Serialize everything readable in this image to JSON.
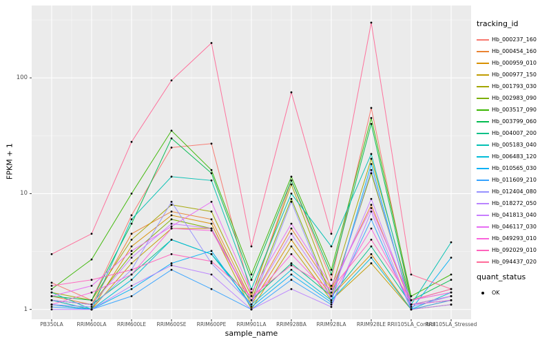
{
  "figure": {
    "background": "#FFFFFF",
    "panel_background": "#EBEBEB",
    "grid_color": "#FFFFFF",
    "tick_color": "#333333",
    "point_color": "#000000"
  },
  "chart_data": {
    "type": "line",
    "title": "",
    "xlabel": "sample_name",
    "ylabel": "FPKM + 1",
    "yscale": "log10",
    "yticks": [
      1,
      10,
      100
    ],
    "ytick_labels": [
      "1",
      "10",
      "100"
    ],
    "ylim": [
      1,
      320
    ],
    "grid": true,
    "categories": [
      "PB350LA",
      "RRIM600LA",
      "RRIM600LE",
      "RRIM600SE",
      "RRIM600PE",
      "RRIM901LA",
      "RRIM928BA",
      "RRIM928LA",
      "RRIM928LE",
      "RRII105LA_Control",
      "RRII105LA_Stressed"
    ],
    "legend": {
      "title": "tracking_id",
      "position": "right"
    },
    "legend2": {
      "title": "quant_status",
      "items": [
        {
          "label": "OK",
          "marker": "point",
          "color": "#000000"
        }
      ]
    },
    "series": [
      {
        "name": "Hb_000237_160",
        "color": "#F8766D",
        "values": [
          1.7,
          1.2,
          6.5,
          25,
          27,
          1.3,
          13,
          1.8,
          55,
          1.2,
          1.4
        ]
      },
      {
        "name": "Hb_000454_160",
        "color": "#EA8331",
        "values": [
          1.3,
          1.1,
          4.5,
          7.0,
          6.0,
          1.2,
          5.0,
          1.5,
          8.0,
          1.1,
          1.3
        ]
      },
      {
        "name": "Hb_000959_010",
        "color": "#D89000",
        "values": [
          1.2,
          1.0,
          3.5,
          6.5,
          5.5,
          1.1,
          4.0,
          1.3,
          3.0,
          1.0,
          1.2
        ]
      },
      {
        "name": "Hb_000977_150",
        "color": "#C09B00",
        "values": [
          1.1,
          1.0,
          2.5,
          5.0,
          5.0,
          1.0,
          3.5,
          1.2,
          2.5,
          1.0,
          1.1
        ]
      },
      {
        "name": "Hb_001793_030",
        "color": "#A3A500",
        "values": [
          1.4,
          1.2,
          4.0,
          8.0,
          7.0,
          1.3,
          12,
          1.5,
          20,
          1.2,
          1.5
        ]
      },
      {
        "name": "Hb_002983_090",
        "color": "#7CAE00",
        "values": [
          1.2,
          1.1,
          3.0,
          6.0,
          5.0,
          1.2,
          9.0,
          1.3,
          15,
          1.1,
          1.3
        ]
      },
      {
        "name": "Hb_003517_090",
        "color": "#39B600",
        "values": [
          1.5,
          2.7,
          10,
          35,
          16,
          2.0,
          14,
          2.2,
          45,
          1.3,
          2.0
        ]
      },
      {
        "name": "Hb_003799_060",
        "color": "#00BB4E",
        "values": [
          1.3,
          1.2,
          5.5,
          30,
          15,
          1.8,
          13,
          2.0,
          40,
          1.2,
          1.8
        ]
      },
      {
        "name": "Hb_004007_200",
        "color": "#00C087",
        "values": [
          1.2,
          1.1,
          2.0,
          4.0,
          3.0,
          1.2,
          2.5,
          1.3,
          3.5,
          1.1,
          1.2
        ]
      },
      {
        "name": "Hb_005183_040",
        "color": "#00C0B2",
        "values": [
          1.4,
          1.0,
          6.0,
          14,
          13,
          1.5,
          10,
          3.5,
          22,
          1.1,
          3.8
        ]
      },
      {
        "name": "Hb_006483_120",
        "color": "#00BCD8",
        "values": [
          1.2,
          1.0,
          1.8,
          4.0,
          3.0,
          1.1,
          2.2,
          1.2,
          2.8,
          1.0,
          1.4
        ]
      },
      {
        "name": "Hb_010565_030",
        "color": "#00B0F6",
        "values": [
          1.1,
          1.0,
          1.5,
          2.5,
          3.2,
          1.05,
          2.0,
          1.15,
          18,
          1.0,
          2.8
        ]
      },
      {
        "name": "Hb_011609_210",
        "color": "#35A2FF",
        "values": [
          1.05,
          1.0,
          1.3,
          2.2,
          1.5,
          1.0,
          1.8,
          1.1,
          6.0,
          1.0,
          1.2
        ]
      },
      {
        "name": "Hb_012404_080",
        "color": "#9590FF",
        "values": [
          1.1,
          1.05,
          2.2,
          8.5,
          2.5,
          1.1,
          8.5,
          1.2,
          16,
          1.05,
          1.3
        ]
      },
      {
        "name": "Hb_018272_050",
        "color": "#B983FF",
        "values": [
          1.0,
          1.0,
          1.6,
          2.4,
          2.0,
          1.0,
          1.5,
          1.05,
          7.0,
          1.0,
          1.1
        ]
      },
      {
        "name": "Hb_041813_040",
        "color": "#C77CFF",
        "values": [
          1.2,
          1.1,
          2.8,
          5.5,
          5.0,
          1.2,
          4.5,
          1.4,
          9.0,
          1.1,
          1.3
        ]
      },
      {
        "name": "Hb_046117_030",
        "color": "#E76BF3",
        "values": [
          1.3,
          1.6,
          3.2,
          5.2,
          8.5,
          1.4,
          5.5,
          1.6,
          7.5,
          1.2,
          1.4
        ]
      },
      {
        "name": "Hb_049293_010",
        "color": "#FA62DB",
        "values": [
          1.1,
          1.4,
          2.0,
          5.0,
          4.8,
          1.2,
          3.0,
          1.3,
          5.0,
          1.1,
          1.2
        ]
      },
      {
        "name": "Hb_092029_010",
        "color": "#FF62BC",
        "values": [
          1.6,
          1.8,
          2.2,
          3.0,
          2.6,
          1.3,
          2.4,
          1.5,
          4.0,
          1.2,
          1.5
        ]
      },
      {
        "name": "Hb_094437_020",
        "color": "#FF6A98",
        "values": [
          3.0,
          4.5,
          28,
          95,
          200,
          3.5,
          75,
          4.5,
          300,
          2.0,
          1.5
        ]
      }
    ]
  }
}
